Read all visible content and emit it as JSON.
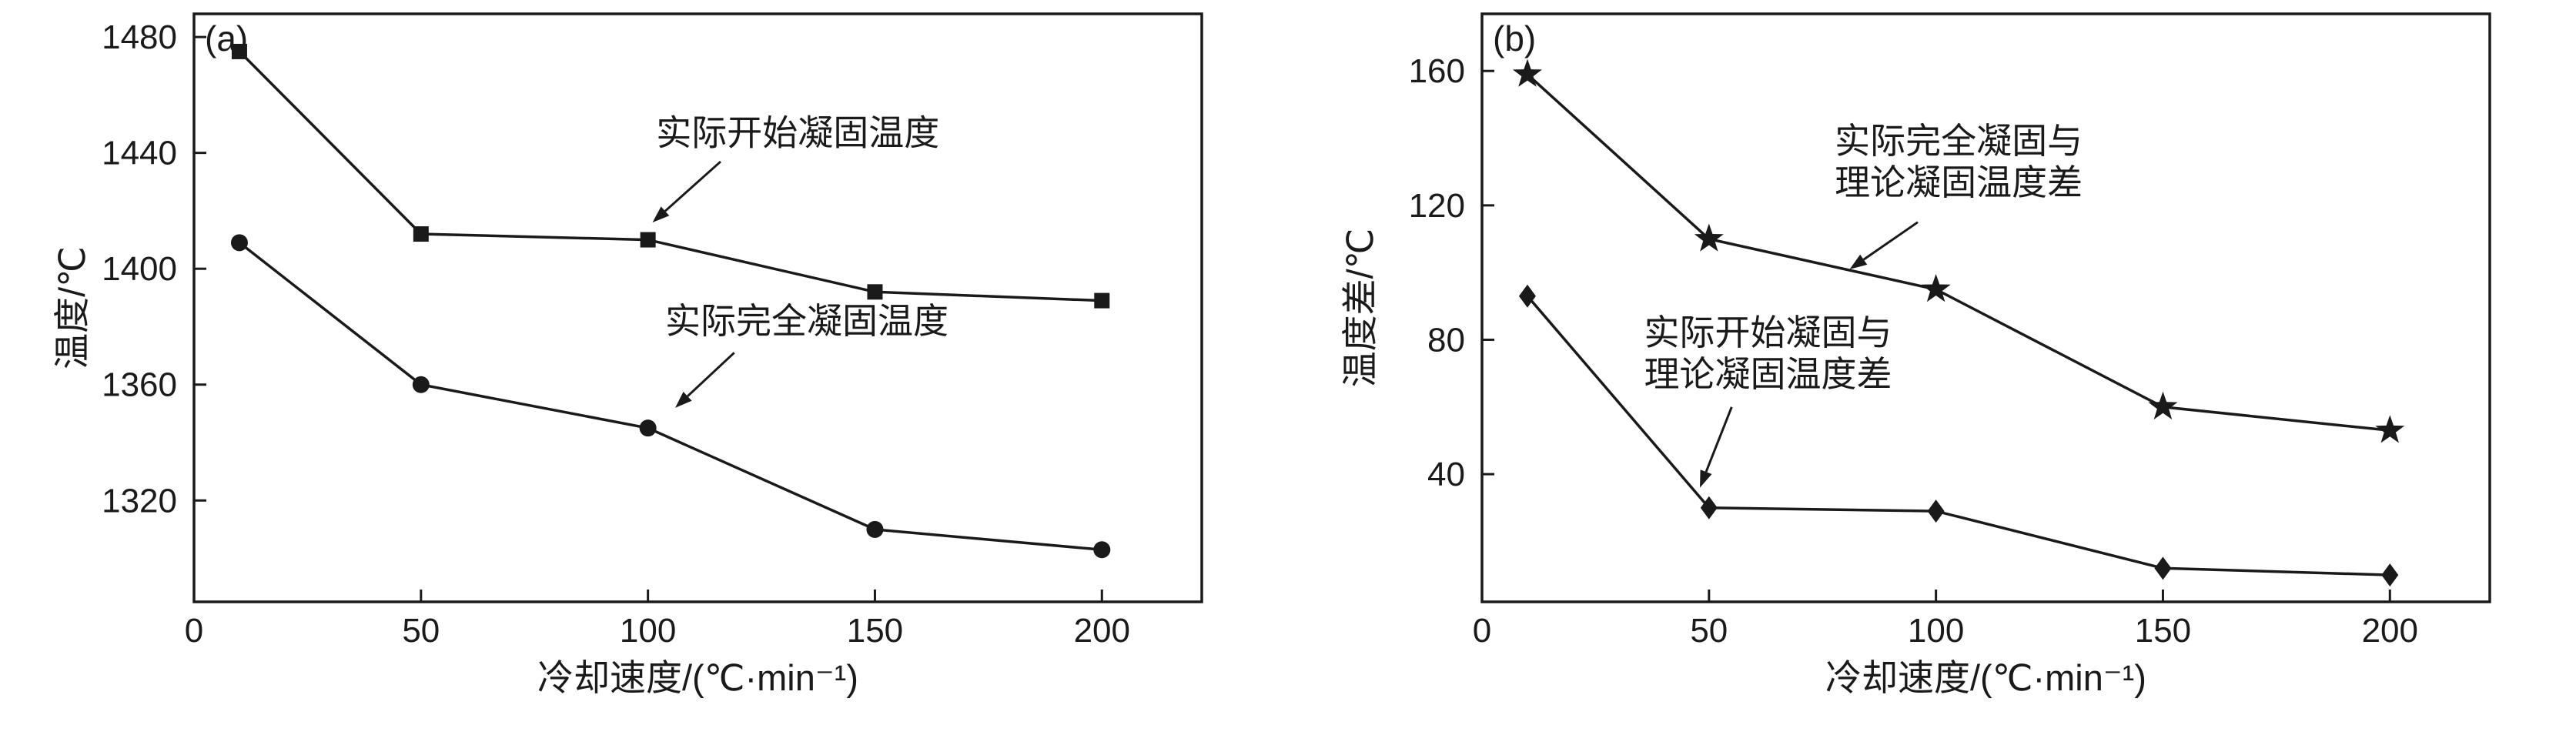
{
  "figure": {
    "background": "#ffffff",
    "line_color": "#1a1a1a"
  },
  "chart_data": [
    {
      "type": "line",
      "panel_label": "(a)",
      "title": "",
      "xlabel": "冷却速度/(℃·min⁻¹)",
      "ylabel": "温度/℃",
      "xlim": [
        0,
        222
      ],
      "ylim": [
        1285,
        1488
      ],
      "xticks": [
        0,
        50,
        100,
        150,
        200
      ],
      "yticks": [
        1320,
        1360,
        1400,
        1440,
        1480
      ],
      "grid": false,
      "legend_position": "none",
      "x": [
        10,
        50,
        100,
        150,
        200
      ],
      "series": [
        {
          "name": "实际开始凝固温度",
          "marker": "square",
          "values": [
            1475,
            1412,
            1410,
            1392,
            1389
          ]
        },
        {
          "name": "实际完全凝固温度",
          "marker": "circle",
          "values": [
            1409,
            1360,
            1345,
            1310,
            1303
          ]
        }
      ],
      "annotations": [
        {
          "lines": [
            "实际开始凝固温度"
          ],
          "tx": 133,
          "ty": 1447,
          "arrow": [
            [
              116,
              1437
            ],
            [
              101,
              1416
            ]
          ]
        },
        {
          "lines": [
            "实际完全凝固温度"
          ],
          "tx": 135,
          "ty": 1382,
          "arrow": [
            [
              119,
              1371
            ],
            [
              106,
              1352
            ]
          ]
        }
      ]
    },
    {
      "type": "line",
      "panel_label": "(b)",
      "title": "",
      "xlabel": "冷却速度/(℃·min⁻¹)",
      "ylabel": "温度差/℃",
      "xlim": [
        0,
        222
      ],
      "ylim": [
        2,
        177
      ],
      "xticks": [
        0,
        50,
        100,
        150,
        200
      ],
      "yticks": [
        40,
        80,
        120,
        160
      ],
      "grid": false,
      "legend_position": "none",
      "x": [
        10,
        50,
        100,
        150,
        200
      ],
      "series": [
        {
          "name": "实际完全凝固与理论凝固温度差",
          "marker": "star",
          "values": [
            159,
            110,
            95,
            60,
            53
          ]
        },
        {
          "name": "实际开始凝固与理论凝固温度差",
          "marker": "diamond",
          "values": [
            93,
            30,
            29,
            12,
            10
          ]
        }
      ],
      "annotations": [
        {
          "lines": [
            "实际完全凝固与",
            "理论凝固温度差"
          ],
          "tx": 105,
          "ty": 133,
          "arrow": [
            [
              96,
              115
            ],
            [
              81,
              101
            ]
          ]
        },
        {
          "lines": [
            "实际开始凝固与",
            "理论凝固温度差"
          ],
          "tx": 63,
          "ty": 76,
          "arrow": [
            [
              55,
              60
            ],
            [
              48,
              36
            ]
          ]
        }
      ]
    }
  ]
}
